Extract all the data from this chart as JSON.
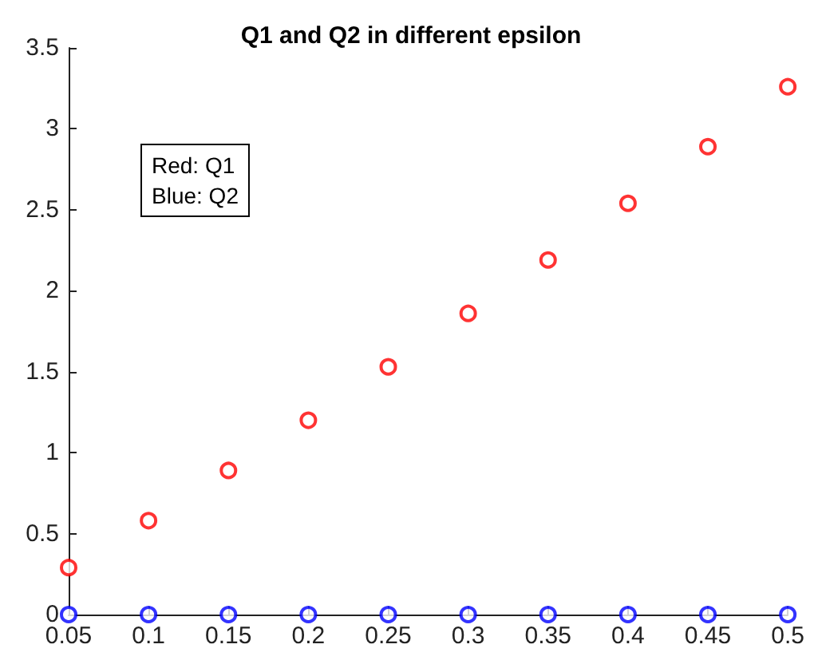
{
  "chart_data": {
    "type": "scatter",
    "title": "Q1 and Q2 in different epsilon",
    "x": [
      0.05,
      0.1,
      0.15,
      0.2,
      0.25,
      0.3,
      0.35,
      0.4,
      0.45,
      0.5
    ],
    "series": [
      {
        "color": "#ff0000",
        "values": [
          0.29,
          0.58,
          0.89,
          1.2,
          1.53,
          1.86,
          2.19,
          2.54,
          2.89,
          3.26
        ]
      },
      {
        "color": "#0000ff",
        "values": [
          0,
          0,
          0,
          0,
          0,
          0,
          0,
          0,
          0,
          0
        ]
      }
    ],
    "xlim": [
      0.05,
      0.5
    ],
    "xticks": [
      0.05,
      0.1,
      0.15,
      0.2,
      0.25,
      0.3,
      0.35,
      0.4,
      0.45,
      0.5
    ],
    "ylim": [
      0,
      3.5
    ],
    "yticks": [
      0,
      0.5,
      1,
      1.5,
      2,
      2.5,
      3,
      3.5
    ],
    "annotations": [
      "Red: Q1\nBlue: Q2"
    ],
    "marker": "circle",
    "grid": false
  }
}
